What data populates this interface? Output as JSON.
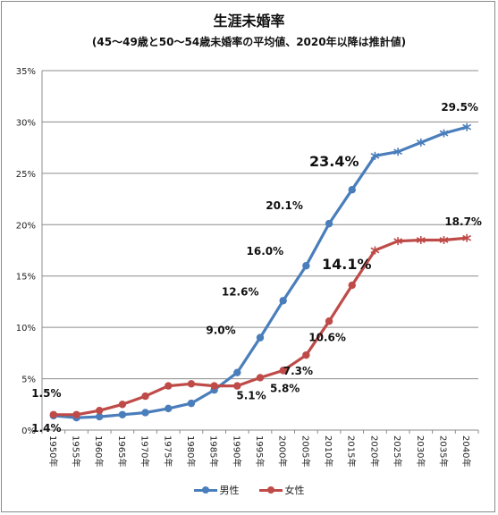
{
  "chart_data": {
    "type": "line",
    "title": "生涯未婚率",
    "subtitle": "(45～49歳と50～54歳未婚率の平均値、2020年以降は推計値)",
    "categories": [
      "1950年",
      "1955年",
      "1960年",
      "1965年",
      "1970年",
      "1975年",
      "1980年",
      "1985年",
      "1990年",
      "1995年",
      "2000年",
      "2005年",
      "2010年",
      "2015年",
      "2020年",
      "2025年",
      "2030年",
      "2035年",
      "2040年"
    ],
    "y_tick_labels": [
      "0%",
      "5%",
      "10%",
      "15%",
      "20%",
      "25%",
      "30%",
      "35%"
    ],
    "ylim": [
      0,
      35
    ],
    "grid": true,
    "legend_position": "bottom",
    "estimate_from": "2020年",
    "series": [
      {
        "name": "男性",
        "color": "#4a7ebb",
        "values": [
          1.4,
          1.2,
          1.3,
          1.5,
          1.7,
          2.1,
          2.6,
          3.9,
          5.6,
          9.0,
          12.6,
          16.0,
          20.1,
          23.4,
          26.7,
          27.1,
          28.0,
          28.9,
          29.5
        ]
      },
      {
        "name": "女性",
        "color": "#be4b48",
        "values": [
          1.5,
          1.5,
          1.9,
          2.5,
          3.3,
          4.3,
          4.5,
          4.3,
          4.3,
          5.1,
          5.8,
          7.3,
          10.6,
          14.1,
          17.5,
          18.4,
          18.5,
          18.5,
          18.7
        ]
      }
    ],
    "annotations": [
      {
        "text": "1.5%",
        "category": "1950年",
        "series": "女性",
        "size": "normal"
      },
      {
        "text": "1.4%",
        "category": "1950年",
        "series": "男性",
        "size": "normal"
      },
      {
        "text": "9.0%",
        "category": "1995年",
        "series": "男性",
        "size": "normal"
      },
      {
        "text": "12.6%",
        "category": "2000年",
        "series": "男性",
        "size": "normal"
      },
      {
        "text": "16.0%",
        "category": "2005年",
        "series": "男性",
        "size": "normal"
      },
      {
        "text": "20.1%",
        "category": "2010年",
        "series": "男性",
        "size": "normal"
      },
      {
        "text": "23.4%",
        "category": "2015年",
        "series": "男性",
        "size": "large"
      },
      {
        "text": "29.5%",
        "category": "2040年",
        "series": "男性",
        "size": "normal"
      },
      {
        "text": "5.1%",
        "category": "1995年",
        "series": "女性",
        "size": "normal"
      },
      {
        "text": "5.8%",
        "category": "2000年",
        "series": "女性",
        "size": "normal"
      },
      {
        "text": "7.3%",
        "category": "2005年",
        "series": "女性",
        "size": "normal"
      },
      {
        "text": "10.6%",
        "category": "2010年",
        "series": "女性",
        "size": "normal"
      },
      {
        "text": "14.1%",
        "category": "2015年",
        "series": "女性",
        "size": "large"
      },
      {
        "text": "18.7%",
        "category": "2040年",
        "series": "女性",
        "size": "normal"
      }
    ]
  }
}
